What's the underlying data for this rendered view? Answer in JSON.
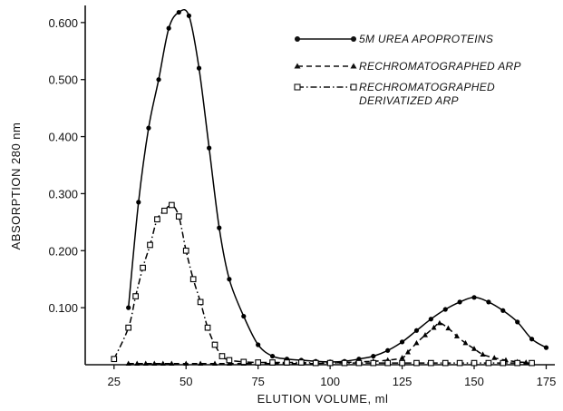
{
  "chart_data": {
    "type": "line",
    "xlabel": "ELUTION VOLUME, ml",
    "ylabel": "ABSORPTION 280 nm",
    "xlim": [
      15,
      178
    ],
    "ylim": [
      0,
      0.63
    ],
    "xticks": [
      25,
      50,
      75,
      100,
      125,
      150,
      175
    ],
    "xtick_labels": [
      "25",
      "50",
      "75",
      "100",
      "125",
      "150",
      "175"
    ],
    "yticks": [
      0.1,
      0.2,
      0.3,
      0.4,
      0.5,
      0.6
    ],
    "ytick_labels": [
      "0.100",
      "0.200",
      "0.300",
      "0.400",
      "0.500",
      "0.600"
    ],
    "grid": false,
    "legend_position": "top-right",
    "series": [
      {
        "name": "5M UREA APOPROTEINS",
        "line_style": "solid",
        "marker": "filled-circle",
        "color": "#000000",
        "x": [
          30,
          33.5,
          37,
          40.5,
          44,
          47.5,
          51,
          54.5,
          58,
          61.5,
          65,
          70,
          75,
          80,
          85,
          90,
          95,
          100,
          105,
          110,
          115,
          120,
          125,
          130,
          135,
          140,
          145,
          150,
          155,
          160,
          165,
          170,
          175
        ],
        "y": [
          0.1,
          0.285,
          0.415,
          0.5,
          0.59,
          0.618,
          0.612,
          0.52,
          0.38,
          0.24,
          0.15,
          0.085,
          0.035,
          0.015,
          0.01,
          0.008,
          0.006,
          0.005,
          0.006,
          0.01,
          0.015,
          0.025,
          0.04,
          0.06,
          0.08,
          0.097,
          0.11,
          0.118,
          0.11,
          0.095,
          0.075,
          0.045,
          0.03
        ]
      },
      {
        "name": "RECHROMATOGRAPHED ARP",
        "line_style": "dashed",
        "marker": "filled-triangle",
        "color": "#000000",
        "x": [
          30,
          33,
          36,
          39,
          42,
          45,
          50,
          55,
          60,
          65,
          70,
          75,
          80,
          85,
          90,
          95,
          100,
          105,
          110,
          115,
          120,
          125,
          127,
          130,
          133,
          136,
          138,
          141,
          144,
          147,
          150,
          153,
          157,
          161,
          165,
          168
        ],
        "y": [
          0.002,
          0.002,
          0.002,
          0.002,
          0.002,
          0.002,
          0.002,
          0.002,
          0.002,
          0.002,
          0.002,
          0.002,
          0.002,
          0.002,
          0.002,
          0.002,
          0.003,
          0.004,
          0.005,
          0.006,
          0.008,
          0.012,
          0.022,
          0.038,
          0.052,
          0.065,
          0.073,
          0.064,
          0.05,
          0.038,
          0.028,
          0.018,
          0.012,
          0.008,
          0.005,
          0.004
        ]
      },
      {
        "name": "RECHROMATOGRAPHED DERIVATIZED ARP",
        "line_style": "dash-dot",
        "marker": "open-square",
        "color": "#000000",
        "x": [
          25,
          30,
          32.5,
          35,
          37.5,
          40,
          42.5,
          45,
          47.5,
          50,
          52.5,
          55,
          57.5,
          60,
          62.5,
          65,
          70,
          75,
          80,
          85,
          90,
          95,
          100,
          105,
          110,
          115,
          120,
          125,
          130,
          135,
          140,
          145,
          150,
          155,
          160,
          165,
          170
        ],
        "y": [
          0.01,
          0.065,
          0.12,
          0.17,
          0.21,
          0.255,
          0.27,
          0.28,
          0.26,
          0.2,
          0.15,
          0.11,
          0.065,
          0.035,
          0.015,
          0.008,
          0.005,
          0.004,
          0.004,
          0.004,
          0.004,
          0.003,
          0.003,
          0.003,
          0.003,
          0.003,
          0.003,
          0.003,
          0.003,
          0.003,
          0.003,
          0.003,
          0.003,
          0.003,
          0.003,
          0.003,
          0.003
        ]
      }
    ]
  }
}
